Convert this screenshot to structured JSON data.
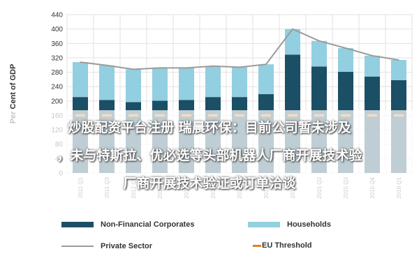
{
  "chart_data": {
    "type": "bar",
    "stacked": true,
    "title": "",
    "xlabel": "",
    "ylabel": "Per Cent of GDP",
    "ylim": [
      0,
      440
    ],
    "yticks": [
      0,
      40,
      80,
      120,
      160,
      200,
      240,
      280,
      320,
      360,
      400,
      440
    ],
    "grid": true,
    "legend_position": "bottom",
    "categories": [
      "2011 Q1",
      "2011 Q3",
      "2012 Q1",
      "2012 Q3",
      "2013 Q1",
      "2013 Q3",
      "2014 Q1",
      "2014 Q3",
      "2015 Q1",
      "2015 Q2",
      "2015 Q3",
      "2015 Q4",
      "2016 Q1"
    ],
    "series": [
      {
        "name": "Non-Financial Corporates",
        "color": "#1b4f66",
        "values": [
          211,
          203,
          197,
          201,
          203,
          211,
          211,
          219,
          329,
          296,
          281,
          268,
          258
        ]
      },
      {
        "name": "Households",
        "color": "#92cfe0",
        "values": [
          97,
          96,
          91,
          91,
          89,
          86,
          83,
          83,
          71,
          71,
          66,
          58,
          56
        ]
      }
    ],
    "lines": [
      {
        "name": "Private Sector",
        "color": "#9b9b9b",
        "values": [
          308,
          299,
          288,
          292,
          292,
          297,
          294,
          302,
          400,
          367,
          347,
          326,
          314
        ]
      },
      {
        "name": "EU Threshold",
        "color": "#e67e22",
        "style": "dashed",
        "values": [
          160,
          160,
          160,
          160,
          160,
          160,
          160,
          160,
          160,
          160,
          160,
          160,
          160
        ]
      }
    ]
  },
  "overlay": {
    "line1": "炒股配资平台注册 瑞晨环保：目前公司暂未涉及",
    "line2": "，未与特斯拉、优必选等头部机器人厂商开展技术验",
    "line3": "厂商开展技术验证或订单洽谈"
  }
}
